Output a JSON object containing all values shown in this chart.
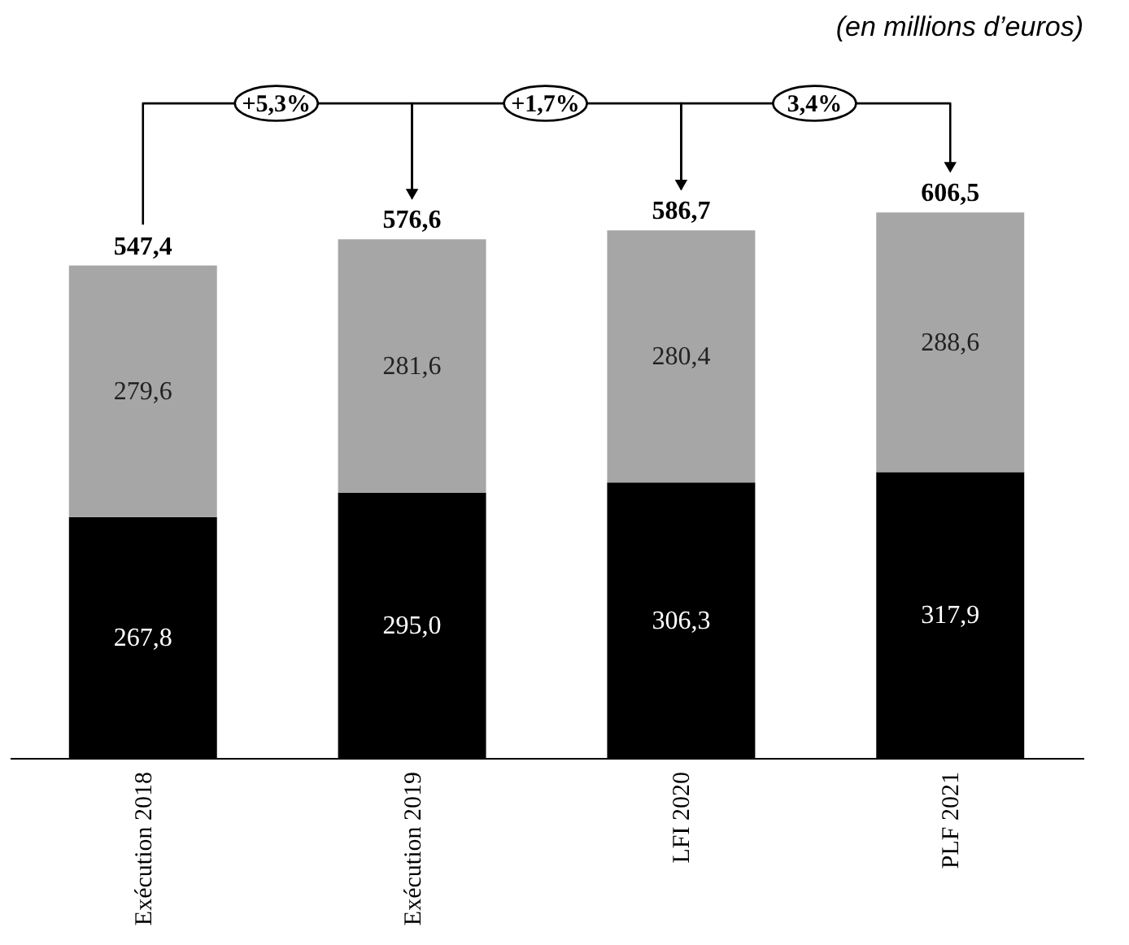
{
  "chart_data": {
    "type": "bar",
    "subtitle": "(en millions d’euros)",
    "categories": [
      "Exécution 2018",
      "Exécution 2019",
      "LFI 2020",
      "PLF 2021"
    ],
    "stacked": true,
    "series": [
      {
        "color": "#000000",
        "values": [
          267.8,
          295.0,
          306.3,
          317.9
        ],
        "value_labels": [
          "267,8",
          "295,0",
          "306,3",
          "317,9"
        ]
      },
      {
        "color": "#a6a6a6",
        "values": [
          279.6,
          281.6,
          280.4,
          288.6
        ],
        "value_labels": [
          "279,6",
          "281,6",
          "280,4",
          "288,6"
        ]
      }
    ],
    "totals": [
      "547,4",
      "576,6",
      "586,7",
      "606,5"
    ],
    "annotations": [
      "+5,3%",
      "+1,7%",
      "3,4%"
    ]
  }
}
